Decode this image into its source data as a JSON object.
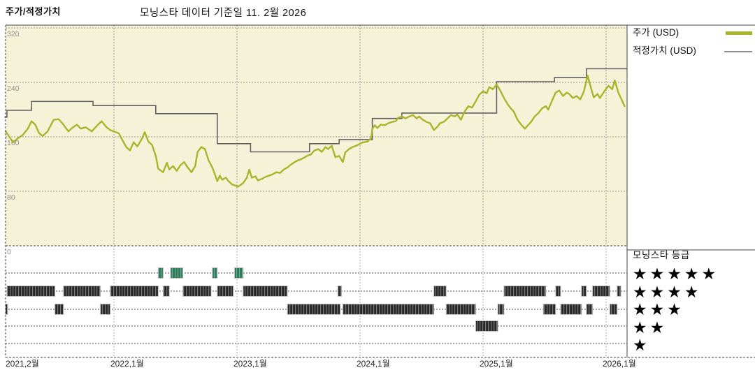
{
  "header": {
    "title": "주가/적정가치",
    "subtitle": "모닝스타 데이터 기준일 11. 2월 2026"
  },
  "legend": {
    "price_label": "주가 (USD)",
    "fair_value_label": "적정가치 (USD)"
  },
  "rating_legend": {
    "title": "모닝스타 등급",
    "star_char": "★",
    "rows": [
      5,
      4,
      3,
      2,
      1
    ]
  },
  "colors": {
    "price_line": "#a9b42a",
    "fair_value_line": "#616161",
    "fair_value_swatch": "#8c8c8c",
    "chart_bg": "#f6f2d8",
    "panel_bg": "#ffffff",
    "grid": "#95948f",
    "grid_lower": "#a5a5a5",
    "rating_row_line": "#4a4a4a",
    "bar_dark_a": "#282828",
    "bar_dark_b": "#777777",
    "bar_dark_c": "#3a3a3a",
    "bar_green_a": "#2b7a5a",
    "bar_green_b": "#74ac92",
    "bar_green_c": "#357f62",
    "bar_outline": "#c0c0c0",
    "border": "#444444",
    "y_tick_text": "#8f8f8f",
    "x_tick_text": "#222222",
    "star": "#000000"
  },
  "chart_data": {
    "type": "line",
    "title": "주가/적정가치",
    "subtitle": "모닝스타 데이터 기준일 11. 2월 2026",
    "x_axis": {
      "unit": "decimal year",
      "range_t": [
        2021.09,
        2026.17
      ],
      "gridlines_t": [
        2022,
        2023,
        2024,
        2025,
        2026
      ],
      "ticks": [
        {
          "label": "2021,2월",
          "t": 2021.09
        },
        {
          "label": "2022,1월",
          "t": 2022
        },
        {
          "label": "2023,1월",
          "t": 2023
        },
        {
          "label": "2024,1월",
          "t": 2024
        },
        {
          "label": "2025,1월",
          "t": 2025
        },
        {
          "label": "2026,1월",
          "t": 2026
        }
      ]
    },
    "y_axis": {
      "unit": "USD",
      "range": [
        0,
        320
      ],
      "ticks": [
        320,
        240,
        160,
        80,
        0
      ]
    },
    "series": [
      {
        "name": "주가 (USD)",
        "style": "line",
        "points": [
          [
            2021.12,
            168
          ],
          [
            2021.15,
            160
          ],
          [
            2021.18,
            152
          ],
          [
            2021.22,
            158
          ],
          [
            2021.26,
            163
          ],
          [
            2021.3,
            172
          ],
          [
            2021.33,
            183
          ],
          [
            2021.36,
            178
          ],
          [
            2021.39,
            166
          ],
          [
            2021.42,
            161
          ],
          [
            2021.46,
            168
          ],
          [
            2021.51,
            185
          ],
          [
            2021.55,
            186
          ],
          [
            2021.58,
            180
          ],
          [
            2021.63,
            168
          ],
          [
            2021.66,
            173
          ],
          [
            2021.7,
            178
          ],
          [
            2021.73,
            172
          ],
          [
            2021.77,
            174
          ],
          [
            2021.82,
            168
          ],
          [
            2021.87,
            178
          ],
          [
            2021.9,
            183
          ],
          [
            2021.94,
            174
          ],
          [
            2021.97,
            170
          ],
          [
            2022.0,
            168
          ],
          [
            2022.04,
            165
          ],
          [
            2022.07,
            155
          ],
          [
            2022.1,
            145
          ],
          [
            2022.13,
            140
          ],
          [
            2022.16,
            152
          ],
          [
            2022.19,
            146
          ],
          [
            2022.23,
            158
          ],
          [
            2022.25,
            167
          ],
          [
            2022.28,
            153
          ],
          [
            2022.31,
            148
          ],
          [
            2022.34,
            132
          ],
          [
            2022.36,
            113
          ],
          [
            2022.4,
            108
          ],
          [
            2022.43,
            122
          ],
          [
            2022.45,
            112
          ],
          [
            2022.48,
            117
          ],
          [
            2022.51,
            110
          ],
          [
            2022.54,
            118
          ],
          [
            2022.57,
            123
          ],
          [
            2022.6,
            115
          ],
          [
            2022.63,
            108
          ],
          [
            2022.66,
            117
          ],
          [
            2022.68,
            138
          ],
          [
            2022.71,
            145
          ],
          [
            2022.74,
            142
          ],
          [
            2022.77,
            125
          ],
          [
            2022.8,
            115
          ],
          [
            2022.84,
            95
          ],
          [
            2022.86,
            103
          ],
          [
            2022.88,
            97
          ],
          [
            2022.91,
            100
          ],
          [
            2022.93,
            95
          ],
          [
            2022.96,
            90
          ],
          [
            2023.01,
            87
          ],
          [
            2023.05,
            92
          ],
          [
            2023.08,
            100
          ],
          [
            2023.1,
            112
          ],
          [
            2023.12,
            100
          ],
          [
            2023.15,
            102
          ],
          [
            2023.17,
            96
          ],
          [
            2023.2,
            98
          ],
          [
            2023.23,
            101
          ],
          [
            2023.26,
            103
          ],
          [
            2023.29,
            105
          ],
          [
            2023.32,
            108
          ],
          [
            2023.35,
            107
          ],
          [
            2023.38,
            112
          ],
          [
            2023.41,
            115
          ],
          [
            2023.43,
            118
          ],
          [
            2023.46,
            122
          ],
          [
            2023.49,
            125
          ],
          [
            2023.52,
            127
          ],
          [
            2023.55,
            130
          ],
          [
            2023.57,
            132
          ],
          [
            2023.6,
            134
          ],
          [
            2023.63,
            140
          ],
          [
            2023.66,
            142
          ],
          [
            2023.69,
            138
          ],
          [
            2023.72,
            145
          ],
          [
            2023.74,
            142
          ],
          [
            2023.77,
            147
          ],
          [
            2023.8,
            130
          ],
          [
            2023.83,
            132
          ],
          [
            2023.86,
            123
          ],
          [
            2023.88,
            137
          ],
          [
            2023.91,
            142
          ],
          [
            2023.94,
            145
          ],
          [
            2023.97,
            147
          ],
          [
            2024.0,
            150
          ],
          [
            2024.03,
            152
          ],
          [
            2024.06,
            153
          ],
          [
            2024.09,
            158
          ],
          [
            2024.1,
            172
          ],
          [
            2024.12,
            177
          ],
          [
            2024.14,
            173
          ],
          [
            2024.17,
            178
          ],
          [
            2024.2,
            177
          ],
          [
            2024.23,
            180
          ],
          [
            2024.26,
            182
          ],
          [
            2024.29,
            183
          ],
          [
            2024.31,
            188
          ],
          [
            2024.34,
            190
          ],
          [
            2024.37,
            187
          ],
          [
            2024.4,
            190
          ],
          [
            2024.43,
            192
          ],
          [
            2024.46,
            187
          ],
          [
            2024.48,
            190
          ],
          [
            2024.51,
            185
          ],
          [
            2024.54,
            182
          ],
          [
            2024.57,
            180
          ],
          [
            2024.6,
            170
          ],
          [
            2024.63,
            175
          ],
          [
            2024.65,
            180
          ],
          [
            2024.68,
            182
          ],
          [
            2024.71,
            187
          ],
          [
            2024.74,
            192
          ],
          [
            2024.77,
            190
          ],
          [
            2024.79,
            193
          ],
          [
            2024.82,
            185
          ],
          [
            2024.85,
            197
          ],
          [
            2024.88,
            205
          ],
          [
            2024.91,
            203
          ],
          [
            2024.94,
            212
          ],
          [
            2024.97,
            222
          ],
          [
            2025.0,
            227
          ],
          [
            2025.03,
            224
          ],
          [
            2025.05,
            233
          ],
          [
            2025.08,
            230
          ],
          [
            2025.11,
            237
          ],
          [
            2025.14,
            228
          ],
          [
            2025.17,
            217
          ],
          [
            2025.2,
            208
          ],
          [
            2025.22,
            203
          ],
          [
            2025.25,
            197
          ],
          [
            2025.28,
            185
          ],
          [
            2025.31,
            178
          ],
          [
            2025.34,
            172
          ],
          [
            2025.37,
            178
          ],
          [
            2025.39,
            182
          ],
          [
            2025.42,
            190
          ],
          [
            2025.45,
            195
          ],
          [
            2025.48,
            202
          ],
          [
            2025.51,
            205
          ],
          [
            2025.53,
            200
          ],
          [
            2025.56,
            213
          ],
          [
            2025.59,
            225
          ],
          [
            2025.62,
            228
          ],
          [
            2025.65,
            220
          ],
          [
            2025.68,
            225
          ],
          [
            2025.7,
            223
          ],
          [
            2025.73,
            217
          ],
          [
            2025.76,
            220
          ],
          [
            2025.79,
            215
          ],
          [
            2025.82,
            227
          ],
          [
            2025.85,
            250
          ],
          [
            2025.88,
            230
          ],
          [
            2025.9,
            218
          ],
          [
            2025.93,
            223
          ],
          [
            2025.95,
            217
          ],
          [
            2025.99,
            228
          ],
          [
            2026.02,
            235
          ],
          [
            2026.05,
            230
          ],
          [
            2026.07,
            243
          ],
          [
            2026.1,
            225
          ],
          [
            2026.13,
            213
          ],
          [
            2026.15,
            205
          ]
        ]
      },
      {
        "name": "적정가치 (USD)",
        "style": "step",
        "end_t": 2026.17,
        "points": [
          [
            2021.11,
            189
          ],
          [
            2021.13,
            199
          ],
          [
            2021.33,
            212
          ],
          [
            2021.83,
            206
          ],
          [
            2022.34,
            194
          ],
          [
            2022.84,
            150
          ],
          [
            2023.11,
            138
          ],
          [
            2023.59,
            150
          ],
          [
            2023.83,
            156
          ],
          [
            2024.1,
            187
          ],
          [
            2024.34,
            195
          ],
          [
            2025.11,
            241
          ],
          [
            2025.58,
            247
          ],
          [
            2025.84,
            260
          ]
        ]
      }
    ],
    "ratings": {
      "name": "모닝스타 등급",
      "levels": [
        5,
        4,
        3,
        2,
        1
      ],
      "bars": [
        {
          "stars": 3,
          "t1": 2021.11,
          "t2": 2021.13
        },
        {
          "stars": 4,
          "t1": 2021.13,
          "t2": 2021.52
        },
        {
          "stars": 3,
          "t1": 2021.52,
          "t2": 2021.59
        },
        {
          "stars": 4,
          "t1": 2021.59,
          "t2": 2021.89
        },
        {
          "stars": 3,
          "t1": 2021.89,
          "t2": 2021.97
        },
        {
          "stars": 4,
          "t1": 2021.97,
          "t2": 2022.36
        },
        {
          "stars": 5,
          "t1": 2022.36,
          "t2": 2022.4
        },
        {
          "stars": 4,
          "t1": 2022.4,
          "t2": 2022.45
        },
        {
          "stars": 5,
          "t1": 2022.46,
          "t2": 2022.56
        },
        {
          "stars": 4,
          "t1": 2022.56,
          "t2": 2022.79
        },
        {
          "stars": 5,
          "t1": 2022.8,
          "t2": 2022.84
        },
        {
          "stars": 4,
          "t1": 2022.84,
          "t2": 2022.97
        },
        {
          "stars": 5,
          "t1": 2022.98,
          "t2": 2023.05
        },
        {
          "stars": 4,
          "t1": 2023.05,
          "t2": 2023.41
        },
        {
          "stars": 3,
          "t1": 2023.41,
          "t2": 2023.84
        },
        {
          "stars": 4,
          "t1": 2023.82,
          "t2": 2023.85
        },
        {
          "stars": 3,
          "t1": 2023.86,
          "t2": 2024.6
        },
        {
          "stars": 4,
          "t1": 2024.6,
          "t2": 2024.7
        },
        {
          "stars": 3,
          "t1": 2024.7,
          "t2": 2024.94
        },
        {
          "stars": 2,
          "t1": 2024.94,
          "t2": 2025.12
        },
        {
          "stars": 3,
          "t1": 2025.12,
          "t2": 2025.17
        },
        {
          "stars": 4,
          "t1": 2025.17,
          "t2": 2025.51
        },
        {
          "stars": 3,
          "t1": 2025.49,
          "t2": 2025.59
        },
        {
          "stars": 4,
          "t1": 2025.59,
          "t2": 2025.63
        },
        {
          "stars": 3,
          "t1": 2025.63,
          "t2": 2025.8
        },
        {
          "stars": 4,
          "t1": 2025.8,
          "t2": 2025.84
        },
        {
          "stars": 3,
          "t1": 2025.84,
          "t2": 2025.89
        },
        {
          "stars": 4,
          "t1": 2025.89,
          "t2": 2026.03
        },
        {
          "stars": 3,
          "t1": 2026.03,
          "t2": 2026.09
        },
        {
          "stars": 4,
          "t1": 2026.09,
          "t2": 2026.12
        }
      ]
    }
  }
}
